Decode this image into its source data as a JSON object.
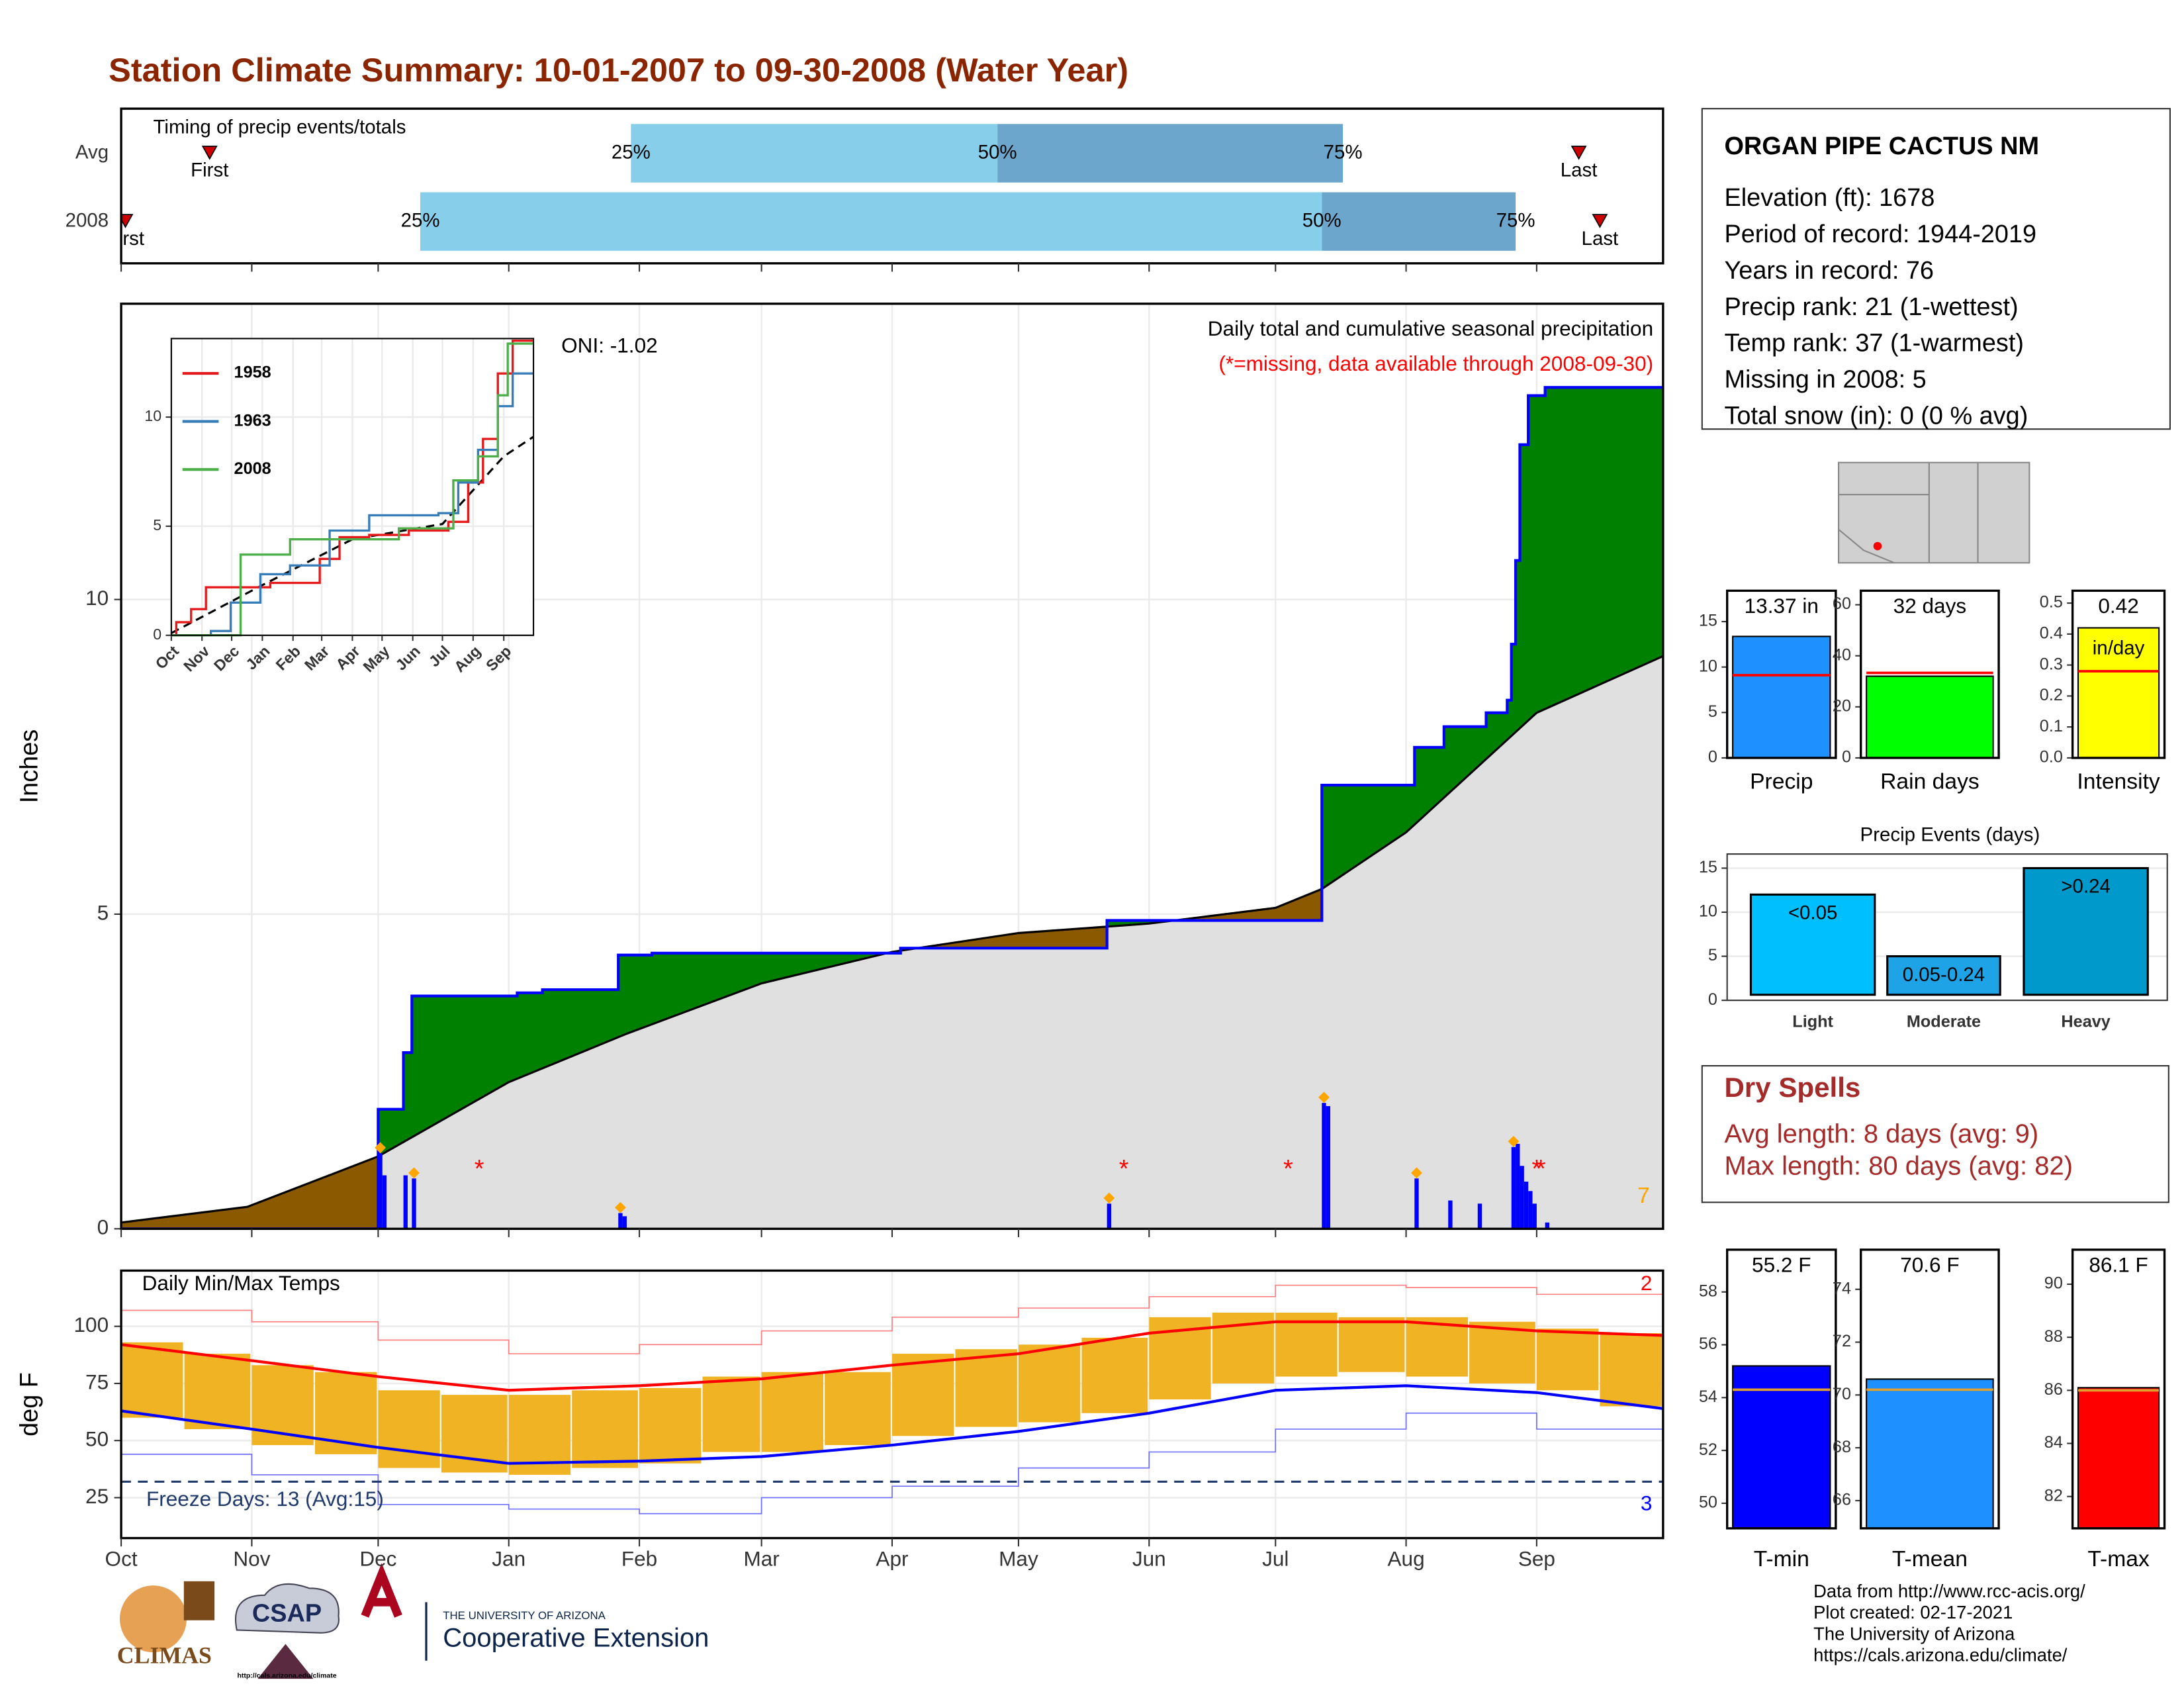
{
  "title": "Station Climate Summary: 10-01-2007 to 09-30-2008 (Water Year)",
  "chart_data": [
    {
      "type": "timing",
      "label": "Timing of precip events/totals",
      "xlim": [
        0,
        366
      ],
      "xticks": [
        {
          "value": 0,
          "label": "Oct"
        },
        {
          "value": 31,
          "label": "Nov"
        },
        {
          "value": 61,
          "label": "Dec"
        },
        {
          "value": 92,
          "label": "Jan"
        },
        {
          "value": 123,
          "label": "Feb"
        },
        {
          "value": 152,
          "label": "Mar"
        },
        {
          "value": 183,
          "label": "Apr"
        },
        {
          "value": 213,
          "label": "May"
        },
        {
          "value": 244,
          "label": "Jun"
        },
        {
          "value": 274,
          "label": "Jul"
        },
        {
          "value": 305,
          "label": "Aug"
        },
        {
          "value": 336,
          "label": "Sep"
        }
      ],
      "marker_labels": {
        "first": "First",
        "p25": "25%",
        "p50": "50%",
        "p75": "75%",
        "last": "Last"
      },
      "colors": {
        "light": "#87ceeb",
        "dark": "#6ca6cd",
        "marker": "#cc0000"
      },
      "series": [
        {
          "name": "Avg",
          "first": 21,
          "p25": 121,
          "p50": 208,
          "p75": 290,
          "last": 346
        },
        {
          "name": "2008",
          "first": 1,
          "p25": 71,
          "p50": 285,
          "p75": 331,
          "last": 351
        }
      ]
    },
    {
      "type": "area",
      "ylabel": "Inches",
      "xlim": [
        0,
        366
      ],
      "ylim": [
        0,
        14.7
      ],
      "yticks": [
        0,
        5,
        10
      ],
      "xticks": [
        {
          "value": 0,
          "label": "Oct"
        },
        {
          "value": 31,
          "label": "Nov"
        },
        {
          "value": 61,
          "label": "Dec"
        },
        {
          "value": 92,
          "label": "Jan"
        },
        {
          "value": 123,
          "label": "Feb"
        },
        {
          "value": 152,
          "label": "Mar"
        },
        {
          "value": 183,
          "label": "Apr"
        },
        {
          "value": 213,
          "label": "May"
        },
        {
          "value": 244,
          "label": "Jun"
        },
        {
          "value": 274,
          "label": "Jul"
        },
        {
          "value": 305,
          "label": "Aug"
        },
        {
          "value": 336,
          "label": "Sep"
        }
      ],
      "subtitle": "Daily total and cumulative seasonal precipitation",
      "note": "(*=missing, data available through 2008-09-30)",
      "oni": "ONI: -1.02",
      "above_color": "#008000",
      "below_color": "#8b5a00",
      "cumulative": {
        "color": "#0000ff",
        "x": [
          0,
          61,
          67,
          69,
          94,
          100,
          118,
          126,
          185,
          234,
          285,
          307,
          314,
          324,
          329,
          330,
          331,
          332,
          334,
          338,
          366
        ],
        "values": [
          0,
          1.9,
          2.8,
          3.7,
          3.75,
          3.8,
          4.35,
          4.38,
          4.46,
          4.9,
          7.05,
          7.65,
          7.98,
          8.2,
          8.4,
          9.29,
          10.62,
          12.46,
          13.24,
          13.37,
          13.37
        ]
      },
      "average": {
        "color": "#e0e0e0",
        "x": [
          0,
          30,
          61,
          92,
          120,
          152,
          183,
          213,
          244,
          274,
          285,
          305,
          336,
          366
        ],
        "values": [
          0.1,
          0.35,
          1.15,
          2.33,
          3.1,
          3.9,
          4.4,
          4.7,
          4.85,
          5.1,
          5.4,
          6.3,
          8.2,
          9.1
        ]
      },
      "daily": {
        "color": "#0000ff",
        "x": [
          61,
          62,
          67,
          69,
          118,
          119,
          234,
          285,
          286,
          307,
          315,
          322,
          330,
          331,
          332,
          333,
          334,
          335,
          338
        ],
        "values": [
          1.2,
          0.85,
          0.85,
          0.8,
          0.25,
          0.2,
          0.4,
          2.0,
          1.95,
          0.8,
          0.45,
          0.4,
          1.3,
          1.35,
          1.0,
          0.75,
          0.6,
          0.4,
          0.1
        ]
      },
      "records": {
        "count": 7,
        "color": "#ffa500",
        "days": [
          61,
          69,
          118,
          234,
          285,
          307,
          330
        ]
      },
      "missing": {
        "symbol": "*",
        "color": "#ff0000",
        "days": [
          85,
          238,
          277,
          336,
          337
        ]
      }
    },
    {
      "type": "line",
      "xlim": [
        0,
        366
      ],
      "ylim": [
        0,
        13.6
      ],
      "yticks": [
        0,
        5,
        10
      ],
      "xticks": [
        {
          "value": 0,
          "label": "Oct"
        },
        {
          "value": 31,
          "label": "Nov"
        },
        {
          "value": 61,
          "label": "Dec"
        },
        {
          "value": 92,
          "label": "Jan"
        },
        {
          "value": 123,
          "label": "Feb"
        },
        {
          "value": 152,
          "label": "Mar"
        },
        {
          "value": 183,
          "label": "Apr"
        },
        {
          "value": 213,
          "label": "May"
        },
        {
          "value": 244,
          "label": "Jun"
        },
        {
          "value": 274,
          "label": "Jul"
        },
        {
          "value": 305,
          "label": "Aug"
        },
        {
          "value": 336,
          "label": "Sep"
        }
      ],
      "series": [
        {
          "name": "1958",
          "color": "#e41a1c",
          "x": [
            0,
            5,
            20,
            35,
            100,
            150,
            170,
            200,
            240,
            280,
            300,
            315,
            330,
            345,
            366
          ],
          "values": [
            0,
            0.6,
            1.2,
            2.2,
            2.4,
            3.5,
            4.5,
            4.6,
            4.8,
            5.2,
            7,
            9,
            12,
            13.5,
            13.5
          ]
        },
        {
          "name": "1963",
          "color": "#377eb8",
          "x": [
            0,
            40,
            60,
            90,
            120,
            160,
            200,
            270,
            290,
            310,
            330,
            345,
            366
          ],
          "values": [
            0,
            0.2,
            1.5,
            2.8,
            3.2,
            4.8,
            5.5,
            5.6,
            7,
            8.5,
            10.5,
            12,
            12
          ]
        },
        {
          "name": "2008",
          "color": "#4daf4a",
          "x": [
            0,
            60,
            70,
            120,
            230,
            285,
            310,
            330,
            340,
            366
          ],
          "values": [
            0,
            0,
            3.7,
            4.4,
            4.9,
            7.1,
            8.2,
            11,
            13.37,
            13.37
          ]
        }
      ],
      "average": {
        "color": "#000000",
        "x": [
          0,
          92,
          183,
          274,
          336,
          366
        ],
        "values": [
          0.1,
          2.3,
          4.4,
          5.1,
          8.2,
          9.1
        ]
      }
    },
    {
      "type": "range",
      "title": "Daily Min/Max Temps",
      "ylabel": "deg F",
      "xlim": [
        0,
        366
      ],
      "ylim": [
        7.3,
        124.4
      ],
      "yticks": [
        25,
        50,
        75,
        100
      ],
      "xticks": [
        {
          "value": 0,
          "label": "Oct"
        },
        {
          "value": 31,
          "label": "Nov"
        },
        {
          "value": 61,
          "label": "Dec"
        },
        {
          "value": 92,
          "label": "Jan"
        },
        {
          "value": 123,
          "label": "Feb"
        },
        {
          "value": 152,
          "label": "Mar"
        },
        {
          "value": 183,
          "label": "Apr"
        },
        {
          "value": 213,
          "label": "May"
        },
        {
          "value": 244,
          "label": "Jun"
        },
        {
          "value": 274,
          "label": "Jul"
        },
        {
          "value": 305,
          "label": "Aug"
        },
        {
          "value": 336,
          "label": "Sep"
        }
      ],
      "color": "#f0b323",
      "x": [
        0,
        15,
        31,
        46,
        61,
        76,
        92,
        107,
        123,
        138,
        152,
        167,
        183,
        198,
        213,
        228,
        244,
        259,
        274,
        289,
        305,
        320,
        336,
        351
      ],
      "tmax": [
        93,
        88,
        83,
        80,
        72,
        70,
        70,
        72,
        73,
        78,
        80,
        80,
        88,
        90,
        92,
        95,
        104,
        106,
        106,
        104,
        104,
        102,
        99,
        97
      ],
      "tmin": [
        60,
        55,
        48,
        44,
        38,
        36,
        35,
        38,
        40,
        45,
        45,
        48,
        52,
        56,
        58,
        62,
        68,
        75,
        78,
        80,
        78,
        75,
        72,
        65
      ],
      "avg_max": {
        "color": "#ff0000",
        "x": [
          0,
          31,
          61,
          92,
          123,
          152,
          183,
          213,
          244,
          274,
          305,
          336,
          366
        ],
        "values": [
          92,
          85,
          78,
          72,
          74,
          77,
          83,
          88,
          97,
          102,
          102,
          98,
          96
        ]
      },
      "avg_min": {
        "color": "#0000ff",
        "x": [
          0,
          31,
          61,
          92,
          123,
          152,
          183,
          213,
          244,
          274,
          305,
          336,
          366
        ],
        "values": [
          63,
          55,
          47,
          40,
          41,
          43,
          48,
          54,
          62,
          72,
          74,
          71,
          64
        ]
      },
      "record_max": {
        "color": "#ff8080",
        "x": [
          0,
          31,
          61,
          92,
          123,
          152,
          183,
          213,
          244,
          274,
          305,
          336,
          366
        ],
        "values": [
          107,
          102,
          94,
          88,
          92,
          98,
          104,
          108,
          113,
          118,
          117,
          114,
          108
        ]
      },
      "record_min": {
        "color": "#7070ff",
        "x": [
          0,
          31,
          61,
          92,
          123,
          152,
          183,
          213,
          244,
          274,
          305,
          336,
          366
        ],
        "values": [
          44,
          35,
          22,
          20,
          18,
          25,
          30,
          38,
          45,
          55,
          62,
          55,
          48
        ]
      },
      "freeze": {
        "value": 32,
        "label": "Freeze Days: 13 (Avg:15)",
        "color": "#1f3a6b"
      },
      "record_highs": 2,
      "record_lows": 3
    },
    {
      "type": "bar",
      "categories": [
        "Precip"
      ],
      "values": [
        13.37
      ],
      "value_labels": [
        "13.37 in"
      ],
      "average": 9.1,
      "color": "#1e90ff",
      "ylim": [
        0,
        18.4
      ],
      "yticks": [
        0,
        5,
        10,
        15
      ]
    },
    {
      "type": "bar",
      "categories": [
        "Rain days"
      ],
      "values": [
        32
      ],
      "value_labels": [
        "32 days"
      ],
      "average": 33.3,
      "color": "#00ff00",
      "ylim": [
        0,
        65.5
      ],
      "yticks": [
        0,
        20,
        40,
        60
      ]
    },
    {
      "type": "bar",
      "categories": [
        "Intensity"
      ],
      "values": [
        0.42
      ],
      "unit": "in/day",
      "average": 0.28,
      "color": "#ffff00",
      "ylim": [
        0,
        0.54
      ],
      "yticks": [
        {
          "value": 0,
          "label": "0.0"
        },
        0.1,
        0.2,
        0.3,
        0.4,
        0.5
      ]
    },
    {
      "type": "bar",
      "title": "Precip Events (days)",
      "categories": [
        "Light",
        "Moderate",
        "Heavy"
      ],
      "values": [
        12,
        5,
        15
      ],
      "category_labels": [
        "<0.05",
        "0.05-0.24",
        ">0.24"
      ],
      "colors": [
        "#00bfff",
        "#1ea4e6",
        "#0099cc"
      ],
      "ylim": [
        0,
        16.6
      ],
      "yticks": [
        0,
        5,
        10,
        15
      ],
      "grid": true
    },
    {
      "type": "bar",
      "categories": [
        "T-min"
      ],
      "values": [
        55.2
      ],
      "value_labels": [
        "55.2 F"
      ],
      "average": 54.3,
      "color": "#0000ff",
      "ylim": [
        49.05,
        59.6
      ],
      "yticks": [
        50,
        52,
        54,
        56,
        58
      ]
    },
    {
      "type": "bar",
      "categories": [
        "T-mean"
      ],
      "values": [
        70.6
      ],
      "value_labels": [
        "70.6 F"
      ],
      "average": 70.2,
      "color": "#1e90ff",
      "ylim": [
        64.95,
        75.5
      ],
      "yticks": [
        66,
        68,
        70,
        72,
        74
      ]
    },
    {
      "type": "bar",
      "categories": [
        "T-max"
      ],
      "values": [
        86.1
      ],
      "value_labels": [
        "86.1 F"
      ],
      "average": 86.0,
      "color": "#ff0000",
      "ylim": [
        80.8,
        91.3
      ],
      "yticks": [
        82,
        84,
        86,
        88,
        90
      ]
    }
  ],
  "station": {
    "name": "ORGAN PIPE CACTUS NM",
    "lines": [
      "Elevation (ft): 1678",
      "Period of record: 1944-2019",
      "Years in record: 76",
      "Precip rank: 21 (1-wettest)",
      "Temp rank: 37 (1-warmest)",
      "Missing in 2008: 5",
      "Total snow (in): 0 (0 % avg)"
    ]
  },
  "dry_spells": {
    "title": "Dry Spells",
    "lines": [
      "Avg length: 8 days (avg: 9)",
      "Max length: 80 days (avg: 82)"
    ]
  },
  "footer": [
    "Data from http://www.rcc-acis.org/",
    "Plot created: 02-17-2021",
    "The University of Arizona",
    "https://cals.arizona.edu/climate/"
  ],
  "logos": {
    "climas": "CLIMAS",
    "csap": "CSAP",
    "csap_url": "http://cals.arizona.edu/climate",
    "ua": "THE UNIVERSITY OF ARIZONA",
    "coop": "Cooperative Extension"
  }
}
